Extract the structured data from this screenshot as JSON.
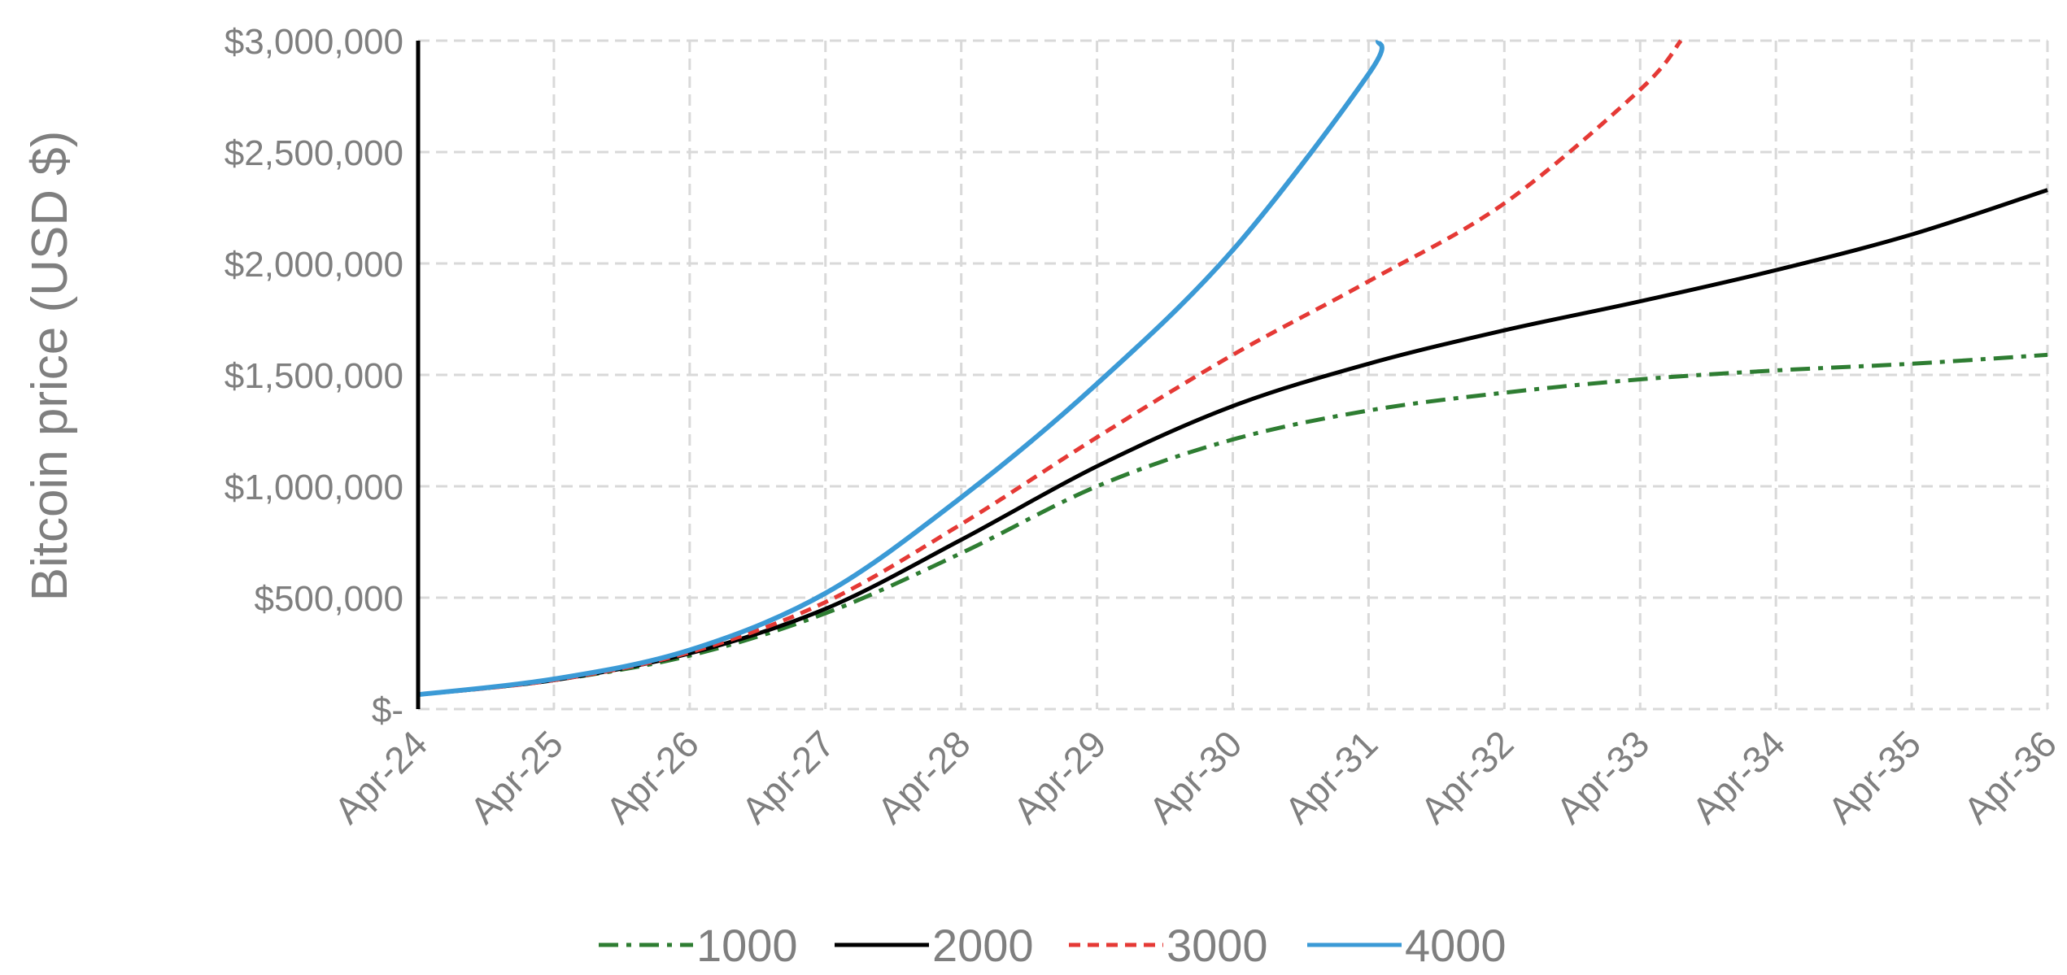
{
  "chart_data": {
    "type": "line",
    "title": "",
    "xlabel": "",
    "ylabel": "Bitcoin price (USD $)",
    "x_ticks": [
      "Apr-24",
      "Apr-25",
      "Apr-26",
      "Apr-27",
      "Apr-28",
      "Apr-29",
      "Apr-30",
      "Apr-31",
      "Apr-32",
      "Apr-33",
      "Apr-34",
      "Apr-35",
      "Apr-36"
    ],
    "y_ticks": [
      {
        "value": 0,
        "label": "$-"
      },
      {
        "value": 500000,
        "label": "$500,000"
      },
      {
        "value": 1000000,
        "label": "$1,000,000"
      },
      {
        "value": 1500000,
        "label": "$1,500,000"
      },
      {
        "value": 2000000,
        "label": "$2,000,000"
      },
      {
        "value": 2500000,
        "label": "$2,500,000"
      },
      {
        "value": 3000000,
        "label": "$3,000,000"
      }
    ],
    "xlim": [
      "Apr-24",
      "Apr-36"
    ],
    "ylim": [
      0,
      3000000
    ],
    "grid": true,
    "legend": "bottom",
    "series": [
      {
        "name": "1000",
        "color": "#2e7d32",
        "dash": "dash-dot",
        "points": [
          [
            "Apr-24",
            65000
          ],
          [
            "Apr-25",
            130000
          ],
          [
            "Apr-26",
            240000
          ],
          [
            "Apr-27",
            430000
          ],
          [
            "Apr-28",
            700000
          ],
          [
            "Apr-29",
            1000000
          ],
          [
            "Apr-30",
            1210000
          ],
          [
            "Apr-31",
            1340000
          ],
          [
            "Apr-32",
            1420000
          ],
          [
            "Apr-33",
            1480000
          ],
          [
            "Apr-34",
            1520000
          ],
          [
            "Apr-35",
            1550000
          ],
          [
            "Apr-36",
            1590000
          ]
        ]
      },
      {
        "name": "2000",
        "color": "#000000",
        "dash": "solid",
        "points": [
          [
            "Apr-24",
            65000
          ],
          [
            "Apr-25",
            130000
          ],
          [
            "Apr-26",
            250000
          ],
          [
            "Apr-27",
            450000
          ],
          [
            "Apr-28",
            760000
          ],
          [
            "Apr-29",
            1090000
          ],
          [
            "Apr-30",
            1360000
          ],
          [
            "Apr-31",
            1550000
          ],
          [
            "Apr-32",
            1700000
          ],
          [
            "Apr-33",
            1830000
          ],
          [
            "Apr-34",
            1970000
          ],
          [
            "Apr-35",
            2130000
          ],
          [
            "Apr-36",
            2330000
          ]
        ]
      },
      {
        "name": "3000",
        "color": "#e53935",
        "dash": "dashed",
        "points": [
          [
            "Apr-24",
            65000
          ],
          [
            "Apr-25",
            130000
          ],
          [
            "Apr-26",
            255000
          ],
          [
            "Apr-27",
            480000
          ],
          [
            "Apr-28",
            830000
          ],
          [
            "Apr-29",
            1220000
          ],
          [
            "Apr-30",
            1590000
          ],
          [
            "Apr-31",
            1920000
          ],
          [
            "Apr-32",
            2270000
          ],
          [
            "Apr-33",
            2780000
          ],
          [
            "Apr-33.3",
            3000000
          ]
        ]
      },
      {
        "name": "4000",
        "color": "#3b9ad6",
        "dash": "solid",
        "points": [
          [
            "Apr-24",
            65000
          ],
          [
            "Apr-25",
            135000
          ],
          [
            "Apr-26",
            265000
          ],
          [
            "Apr-27",
            520000
          ],
          [
            "Apr-28",
            950000
          ],
          [
            "Apr-29",
            1460000
          ],
          [
            "Apr-30",
            2060000
          ],
          [
            "Apr-31",
            2850000
          ],
          [
            "Apr-31.07",
            3000000
          ]
        ]
      }
    ]
  }
}
